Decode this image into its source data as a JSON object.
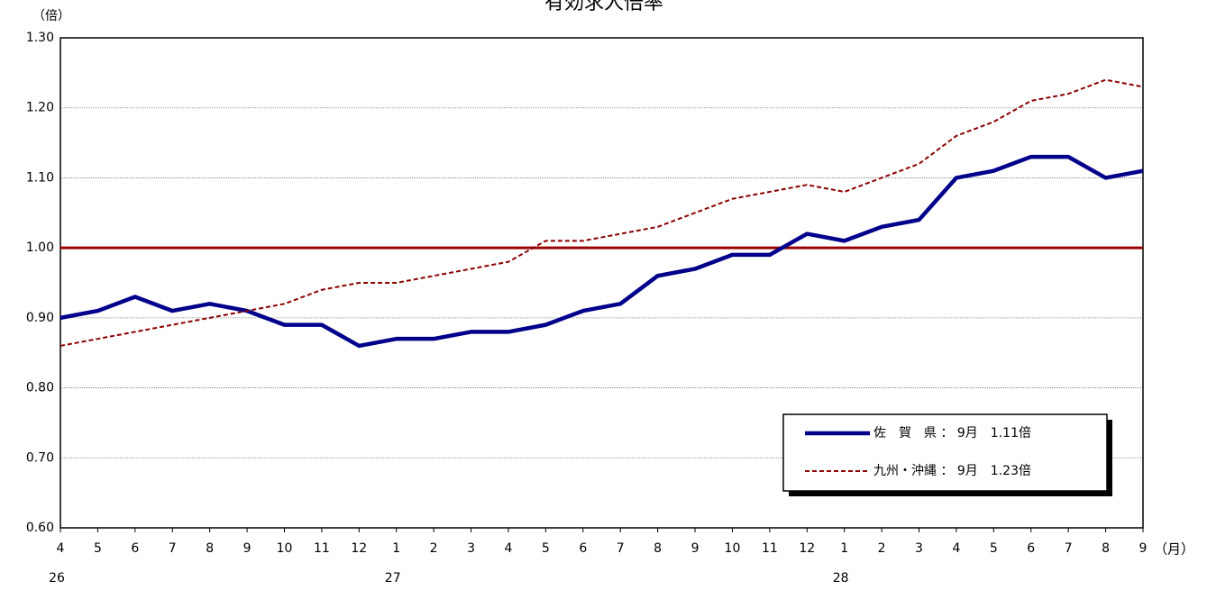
{
  "chart_data": {
    "type": "line",
    "title": "有効求人倍率",
    "y_unit": "（倍）",
    "x_unit": "（月）",
    "categories": [
      "4",
      "5",
      "6",
      "7",
      "8",
      "9",
      "10",
      "11",
      "12",
      "1",
      "2",
      "3",
      "4",
      "5",
      "6",
      "7",
      "8",
      "9",
      "10",
      "11",
      "12",
      "1",
      "2",
      "3",
      "4",
      "5",
      "6",
      "7",
      "8",
      "9"
    ],
    "category_years": [
      "26",
      null,
      null,
      null,
      null,
      null,
      null,
      null,
      null,
      "27",
      null,
      null,
      null,
      null,
      null,
      null,
      null,
      null,
      null,
      null,
      null,
      "28",
      null,
      null,
      null,
      null,
      null,
      null,
      null,
      null
    ],
    "series": [
      {
        "name": "佐　賀　県 ： 9月　1.11倍",
        "color": "#00008b",
        "dash": false,
        "values": [
          0.9,
          0.91,
          0.93,
          0.91,
          0.92,
          0.91,
          0.89,
          0.89,
          0.86,
          0.87,
          0.87,
          0.88,
          0.88,
          0.89,
          0.91,
          0.92,
          0.96,
          0.97,
          0.99,
          0.99,
          1.02,
          1.01,
          1.03,
          1.04,
          1.1,
          1.11,
          1.13,
          1.13,
          1.1,
          1.11
        ]
      },
      {
        "name": "九州・沖縄 ： 9月　1.23倍",
        "color": "#8b0000",
        "dash": true,
        "values": [
          0.86,
          0.87,
          0.88,
          0.89,
          0.9,
          0.91,
          0.92,
          0.94,
          0.95,
          0.95,
          0.96,
          0.97,
          0.98,
          1.01,
          1.01,
          1.02,
          1.03,
          1.05,
          1.07,
          1.08,
          1.09,
          1.08,
          1.1,
          1.12,
          1.16,
          1.18,
          1.21,
          1.22,
          1.24,
          1.23
        ]
      }
    ],
    "reference_line": 1,
    "reference_color": "#990000",
    "ylim": [
      0.6,
      1.3
    ],
    "yticks": [
      {
        "value": 0.6,
        "label": "0.60"
      },
      {
        "value": 0.7,
        "label": "0.70"
      },
      {
        "value": 0.8,
        "label": "0.80"
      },
      {
        "value": 0.9,
        "label": "0.90"
      },
      {
        "value": 1,
        "label": "1.00"
      },
      {
        "value": 1.1,
        "label": "1.10"
      },
      {
        "value": 1.2,
        "label": "1.20"
      },
      {
        "value": 1.3,
        "label": "1.30"
      }
    ],
    "grid": true
  }
}
